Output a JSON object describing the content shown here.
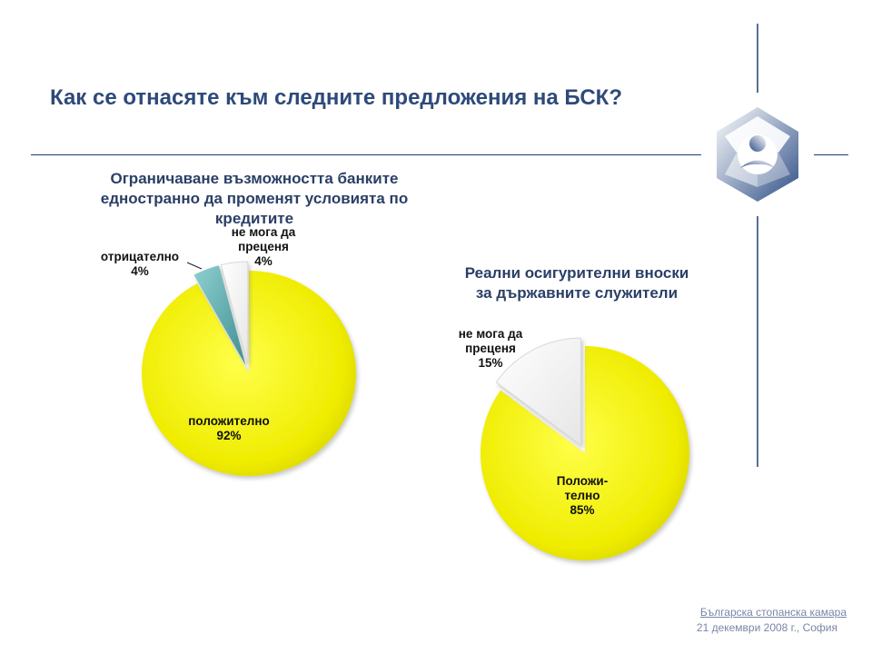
{
  "slide": {
    "title": "Как се отнасяте към следните предложения на БСК?",
    "footer_org": "Българска стопанска камара",
    "footer_date": "21 декември 2008 г., София"
  },
  "colors": {
    "title": "#2e4a7a",
    "yellow": "#f2f000",
    "teal": "#5fb0b0",
    "white": "#ffffff",
    "logo": "#3b5a8c"
  },
  "chart_data": [
    {
      "type": "pie",
      "title_lines": [
        "Ограничаване възможността банките",
        "едностранно да променят условията по кредитите"
      ],
      "slices": [
        {
          "name": "положително",
          "value": 92,
          "label": [
            "положително",
            "92%"
          ],
          "color": "#f2f000"
        },
        {
          "name": "отрицателно",
          "value": 4,
          "label": [
            "отрицателно",
            "4%"
          ],
          "color": "#5fb0b0"
        },
        {
          "name": "не мога да преценя",
          "value": 4,
          "label": [
            "не мога да",
            "преценя",
            "4%"
          ],
          "color": "#ffffff"
        }
      ]
    },
    {
      "type": "pie",
      "title_lines": [
        "Реални осигурителни вноски",
        "за държавните служители"
      ],
      "slices": [
        {
          "name": "Положително",
          "value": 85,
          "label": [
            "Положи-",
            "телно",
            "85%"
          ],
          "color": "#f2f000"
        },
        {
          "name": "не мога да преценя",
          "value": 15,
          "label": [
            "не мога да",
            "преценя",
            "15%"
          ],
          "color": "#ffffff"
        }
      ]
    }
  ]
}
